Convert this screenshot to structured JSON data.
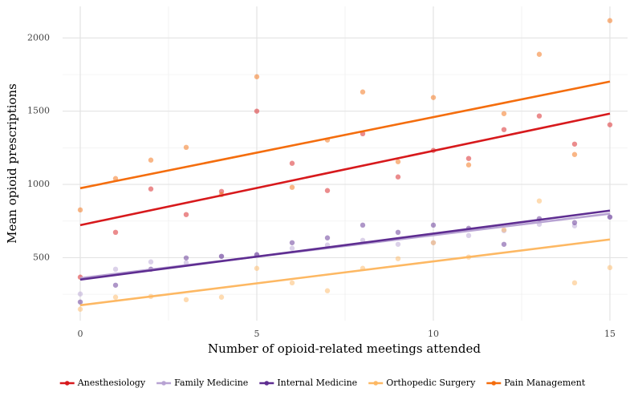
{
  "chart_data": {
    "type": "scatter",
    "x_label": "Number of opioid-related meetings attended",
    "y_label": "Mean opioid prescriptions",
    "x": [
      0,
      1,
      2,
      3,
      4,
      5,
      6,
      7,
      8,
      9,
      10,
      11,
      12,
      13,
      14,
      15
    ],
    "xlim": [
      -0.5,
      15.5
    ],
    "xticks": [
      0,
      5,
      10,
      15
    ],
    "xminorticks": [
      2.5,
      7.5,
      12.5
    ],
    "ylim": [
      70,
      2215
    ],
    "yticks": [
      500,
      1000,
      1500,
      2000
    ],
    "yminorticks": [
      250,
      750,
      1250,
      1750
    ],
    "grid": true,
    "legend": "bottom",
    "fit_x": [
      0,
      15
    ],
    "series": [
      {
        "name": "Anesthesiology",
        "color": "#d7191c",
        "values": [
          367,
          673,
          969,
          794,
          952,
          1500,
          1144,
          958,
          1346,
          1051,
          1232,
          1177,
          1374,
          1467,
          1275,
          1407
        ],
        "fit": [
          722,
          1483
        ]
      },
      {
        "name": "Family Medicine",
        "color": "#b8a3d3",
        "values": [
          252,
          421,
          471,
          465,
          509,
          520,
          564,
          586,
          618,
          591,
          602,
          651,
          684,
          728,
          717,
          777
        ],
        "fit": [
          360,
          800
        ]
      },
      {
        "name": "Internal Medicine",
        "color": "#5e2d91",
        "values": [
          197,
          312,
          421,
          498,
          509,
          520,
          602,
          635,
          722,
          673,
          722,
          700,
          591,
          766,
          739,
          777
        ],
        "fit": [
          350,
          821
        ]
      },
      {
        "name": "Orthopedic Surgery",
        "color": "#fdb863",
        "values": [
          148,
          230,
          235,
          213,
          230,
          427,
          328,
          274,
          427,
          493,
          602,
          504,
          690,
          887,
          328,
          432
        ],
        "fit": [
          175,
          624
        ]
      },
      {
        "name": "Pain Management",
        "color": "#f46d0d",
        "values": [
          826,
          1040,
          1166,
          1253,
          930,
          1735,
          980,
          1303,
          1631,
          1155,
          1593,
          1133,
          1483,
          1888,
          1204,
          2118
        ],
        "fit": [
          974,
          1702
        ]
      }
    ]
  }
}
